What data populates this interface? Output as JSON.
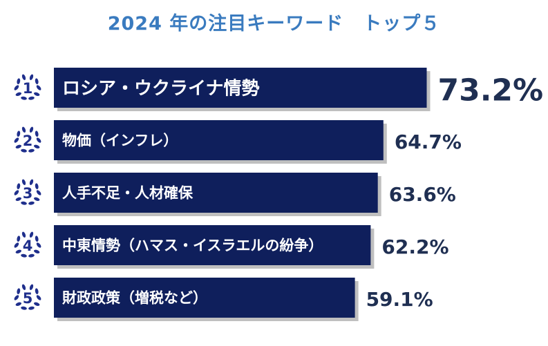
{
  "chart_data": {
    "type": "bar",
    "orientation": "horizontal",
    "title": "2024 年の注目キーワード　トップ５",
    "ranks": [
      "1",
      "2",
      "3",
      "4",
      "5"
    ],
    "categories": [
      "ロシア・ウクライナ情勢",
      "物価（インフレ）",
      "人手不足・人材確保",
      "中東情勢（ハマス・イスラエルの紛争）",
      "財政政策（増税など）"
    ],
    "values": [
      73.2,
      64.7,
      63.6,
      62.2,
      59.1
    ],
    "value_labels": [
      "73.2%",
      "64.7%",
      "63.6%",
      "62.2%",
      "59.1%"
    ],
    "grid": false,
    "legend": "none"
  },
  "colors": {
    "title": "#3a7bbf",
    "bar": "#0f1f5c",
    "bar_shadow": "#8a8a8a",
    "bar_text": "#ffffff",
    "value_text": "#1f2f52",
    "laurel": "#1f2f8c"
  },
  "icons": {
    "rank_badge": "laurel-wreath-icon"
  }
}
